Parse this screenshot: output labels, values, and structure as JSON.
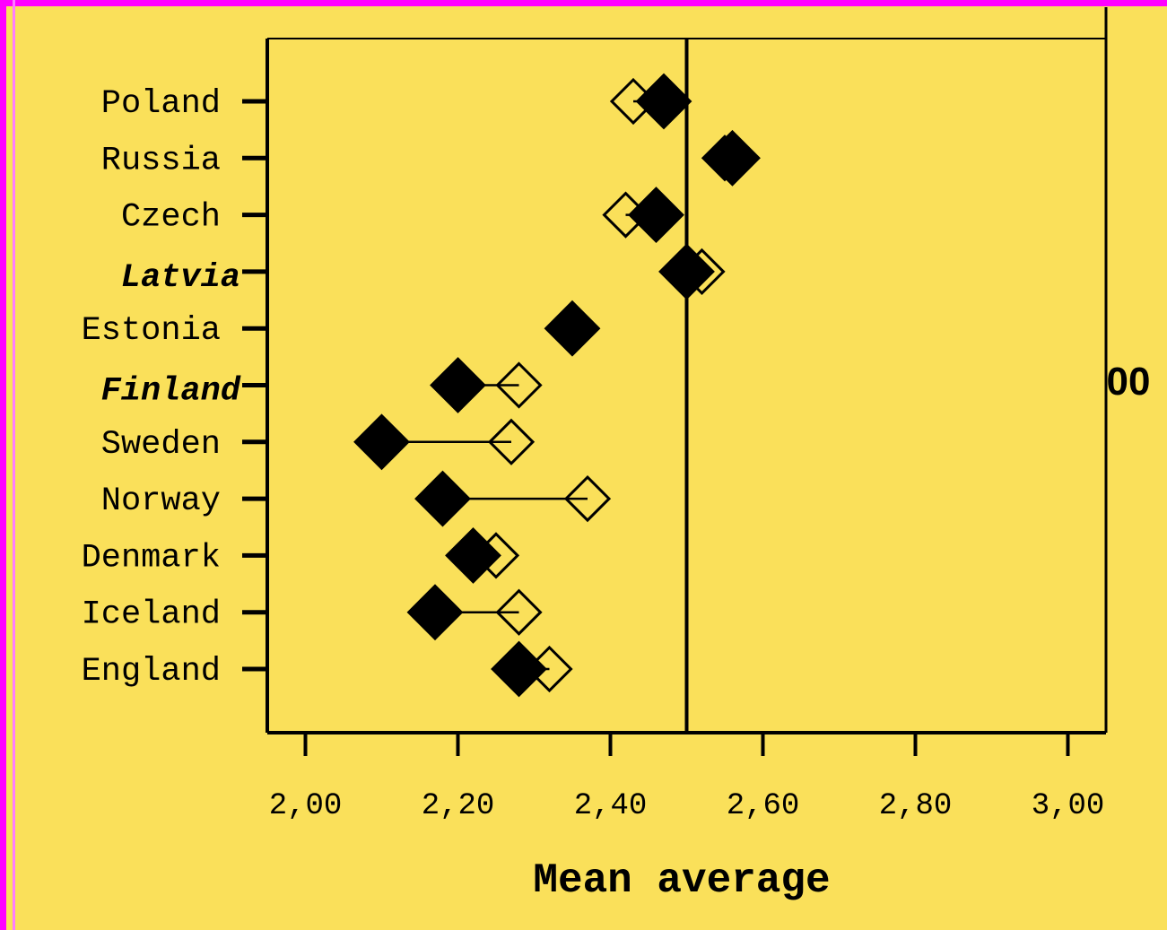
{
  "colors": {
    "background": "#FAE05A",
    "border": "#FF00FF",
    "marker": "#000000"
  },
  "side_text": "00",
  "chart_data": {
    "type": "scatter",
    "title": "",
    "xlabel": "Mean average",
    "ylabel": "",
    "xlim": [
      1.95,
      3.05
    ],
    "xticks": [
      2.0,
      2.2,
      2.4,
      2.6,
      2.8,
      3.0
    ],
    "xtick_labels": [
      "2,00",
      "2,20",
      "2,40",
      "2,60",
      "2,80",
      "3,00"
    ],
    "reference_line": 2.5,
    "grid": false,
    "legend": "none",
    "categories": [
      "Poland",
      "Russia",
      "Czech",
      "Latvia",
      "Estonia",
      "Finland",
      "Sweden",
      "Norway",
      "Denmark",
      "Iceland",
      "England"
    ],
    "emphasized_categories": [
      "Latvia",
      "Finland"
    ],
    "series": [
      {
        "marker": "filled-diamond",
        "values": [
          2.47,
          2.56,
          2.46,
          2.5,
          2.35,
          2.2,
          2.1,
          2.18,
          2.22,
          2.17,
          2.28
        ]
      },
      {
        "marker": "open-diamond",
        "values": [
          2.43,
          2.55,
          2.42,
          2.52,
          2.35,
          2.28,
          2.27,
          2.37,
          2.25,
          2.28,
          2.32
        ]
      }
    ]
  }
}
